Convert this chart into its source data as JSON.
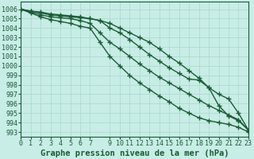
{
  "title": "Graphe pression niveau de la mer (hPa)",
  "bg_color": "#c8ece6",
  "grid_color": "#a8d8cc",
  "line_color": "#1a5c35",
  "xlim": [
    0,
    23
  ],
  "ylim": [
    992.5,
    1006.8
  ],
  "yticks": [
    993,
    994,
    995,
    996,
    997,
    998,
    999,
    1000,
    1001,
    1002,
    1003,
    1004,
    1005,
    1006
  ],
  "xtick_positions": [
    0,
    1,
    2,
    3,
    4,
    5,
    6,
    7,
    9,
    10,
    11,
    12,
    13,
    14,
    15,
    16,
    17,
    18,
    19,
    20,
    21,
    22,
    23
  ],
  "xtick_labels": [
    "0",
    "1",
    "2",
    "3",
    "4",
    "5",
    "6",
    "7",
    "9",
    "10",
    "11",
    "12",
    "13",
    "14",
    "15",
    "16",
    "17",
    "18",
    "19",
    "20",
    "21",
    "22",
    "23"
  ],
  "series": [
    [
      1006.0,
      1005.8,
      1005.7,
      1005.5,
      1005.4,
      1005.3,
      1005.2,
      1005.0,
      1004.8,
      1004.0,
      1003.5,
      1002.8,
      1002.0,
      1001.2,
      1000.5,
      999.8,
      999.2,
      998.6,
      998.5,
      997.7,
      995.8,
      994.7,
      994.2,
      993.2
    ],
    [
      1006.0,
      1005.8,
      1005.6,
      1005.4,
      1005.3,
      1005.2,
      1005.1,
      1005.0,
      1004.8,
      1004.5,
      1004.0,
      1003.5,
      1003.0,
      1002.5,
      1001.8,
      1001.0,
      1000.3,
      999.5,
      998.7,
      997.7,
      997.0,
      996.5,
      995.0,
      993.2
    ],
    [
      1006.0,
      1005.7,
      1005.4,
      1005.2,
      1005.1,
      1005.0,
      1004.8,
      1004.5,
      1003.5,
      1002.5,
      1001.8,
      1001.0,
      1000.2,
      999.5,
      998.8,
      998.2,
      997.6,
      997.0,
      996.4,
      995.8,
      995.3,
      994.8,
      994.3,
      993.2
    ],
    [
      1006.0,
      1005.6,
      1005.2,
      1004.9,
      1004.7,
      1004.5,
      1004.2,
      1004.0,
      1002.5,
      1001.0,
      1000.0,
      999.0,
      998.2,
      997.5,
      996.8,
      996.2,
      995.5,
      995.0,
      994.5,
      994.2,
      994.0,
      993.8,
      993.5,
      993.0
    ]
  ],
  "marker": "+",
  "markersize": 4,
  "linewidth": 1.0,
  "title_fontsize": 7.5,
  "tick_fontsize": 6.0
}
